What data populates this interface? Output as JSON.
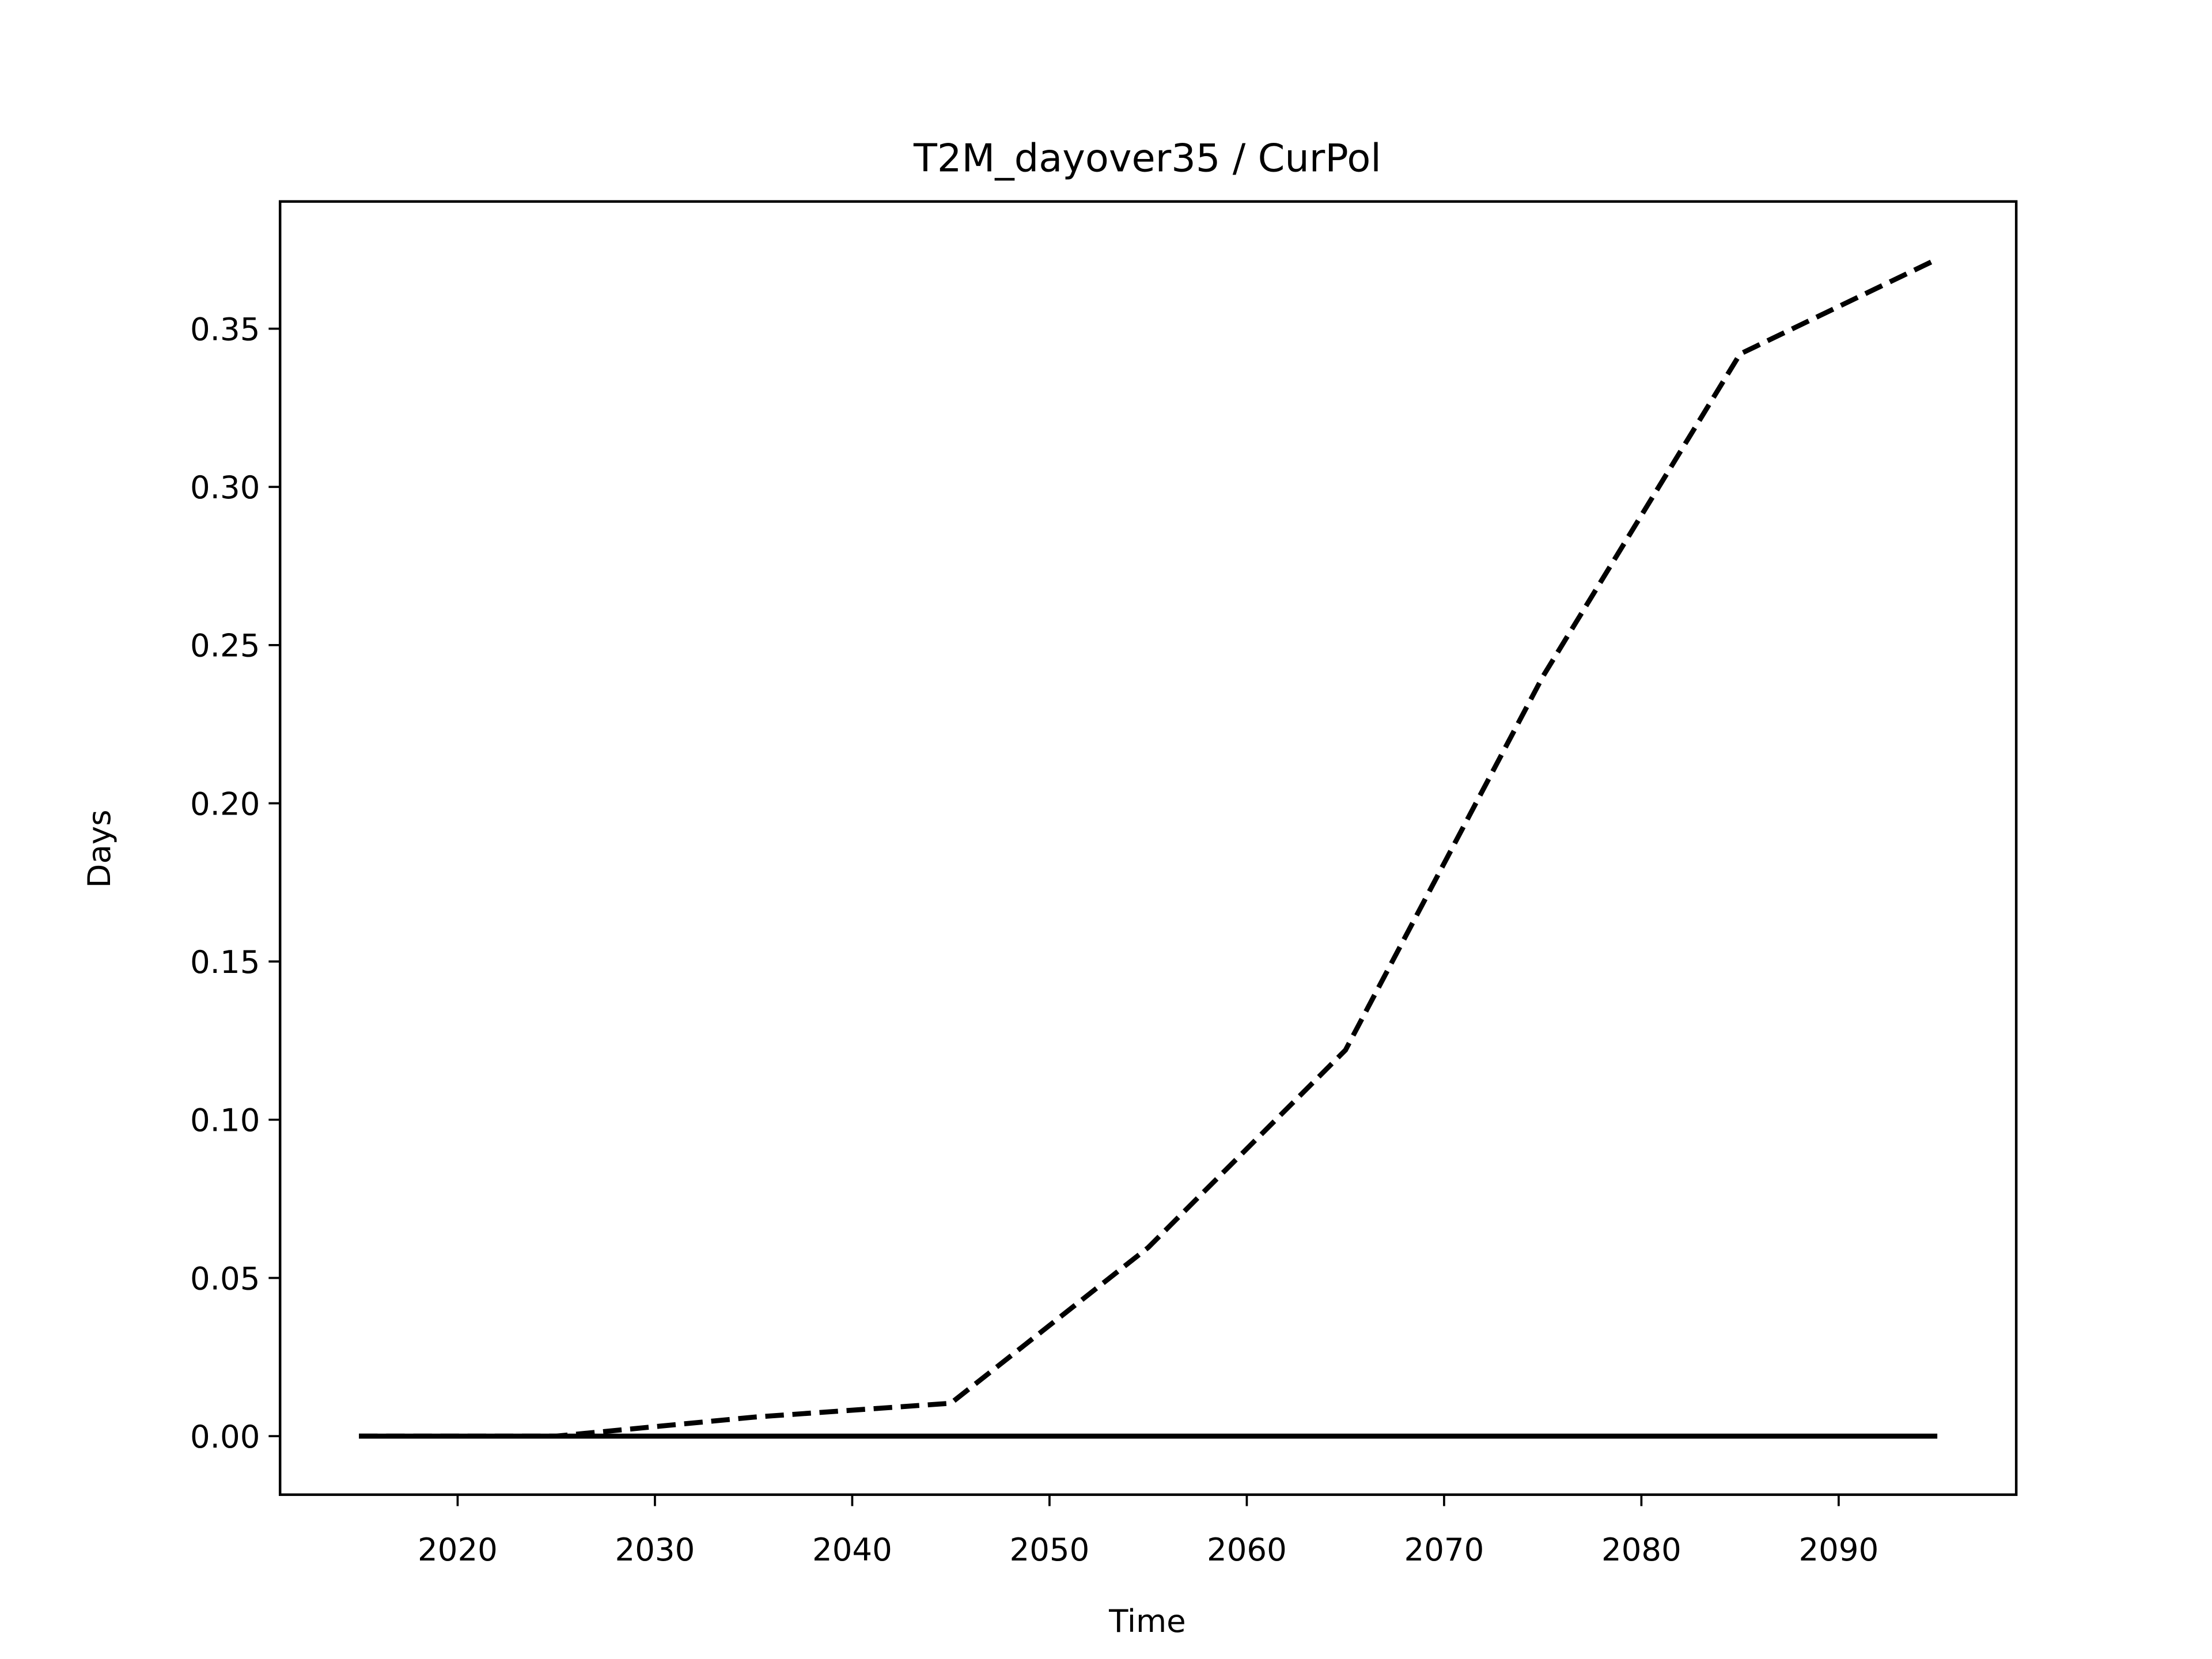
{
  "chart_data": {
    "type": "line",
    "title": "T2M_dayover35 / CurPol",
    "x_label": "Time",
    "y_label": "Days",
    "x": [
      2015,
      2025,
      2035,
      2045,
      2055,
      2065,
      2075,
      2085,
      2095
    ],
    "series": [
      {
        "color": "#000000",
        "dash": true,
        "values": [
          0,
          0,
          0.006,
          0.0104,
          0.0596,
          0.122,
          0.24,
          0.342,
          0.372
        ]
      },
      {
        "color": "#000000",
        "dash": false,
        "values": [
          0,
          0,
          0,
          0,
          0,
          0,
          0,
          0,
          0
        ]
      }
    ],
    "xlim": [
      2011,
      2099
    ],
    "ylim": [
      -0.0185,
      0.3902
    ],
    "xticks": [
      2020,
      2030,
      2040,
      2050,
      2060,
      2070,
      2080,
      2090
    ],
    "yticks": [
      {
        "value": 0,
        "label": "0.00"
      },
      {
        "value": 0.05,
        "label": "0.05"
      },
      {
        "value": 0.1,
        "label": "0.10"
      },
      {
        "value": 0.15,
        "label": "0.15"
      },
      {
        "value": 0.2,
        "label": "0.20"
      },
      {
        "value": 0.25,
        "label": "0.25"
      },
      {
        "value": 0.3,
        "label": "0.30"
      },
      {
        "value": 0.35,
        "label": "0.35"
      }
    ]
  }
}
